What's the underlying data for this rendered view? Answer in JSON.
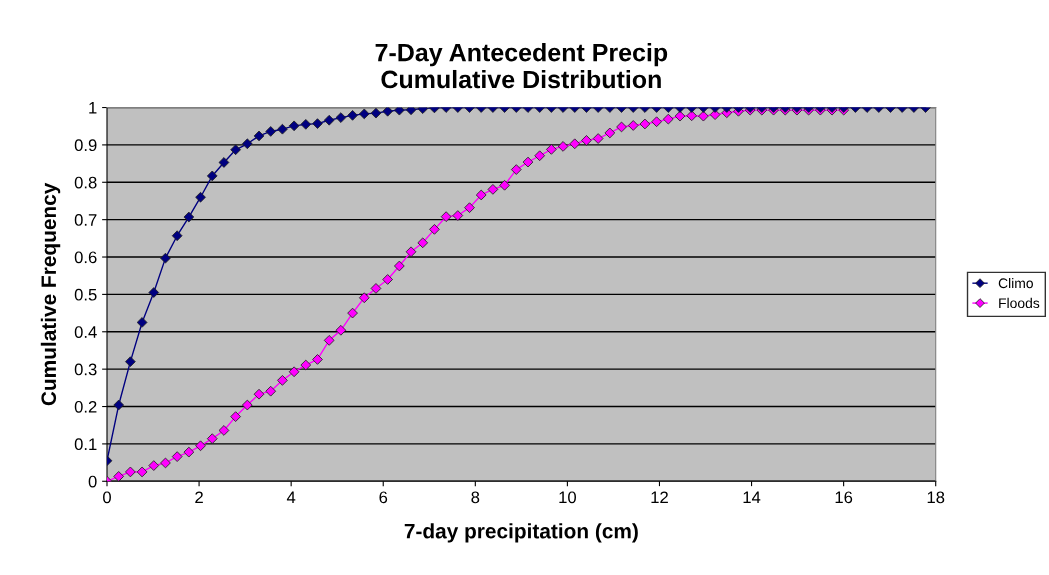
{
  "chart_data": {
    "type": "line",
    "title": "7-Day Antecedent Precip\nCumulative Distribution",
    "xlabel": "7-day precipitation (cm)",
    "ylabel": "Cumulative Frequency",
    "x": [
      0,
      0.254,
      0.508,
      0.762,
      1.016,
      1.27,
      1.524,
      1.778,
      2.032,
      2.286,
      2.54,
      2.794,
      3.048,
      3.302,
      3.556,
      3.81,
      4.064,
      4.318,
      4.572,
      4.826,
      5.08,
      5.334,
      5.588,
      5.842,
      6.096,
      6.35,
      6.604,
      6.858,
      7.112,
      7.366,
      7.62,
      7.874,
      8.128,
      8.382,
      8.636,
      8.89,
      9.144,
      9.398,
      9.652,
      9.906,
      10.16,
      10.414,
      10.668,
      10.922,
      11.176,
      11.43,
      11.684,
      11.938,
      12.192,
      12.446,
      12.7,
      12.954,
      13.208,
      13.462,
      13.716,
      13.97,
      14.224,
      14.478,
      14.732,
      14.986,
      15.24,
      15.494,
      15.748,
      16.002,
      16.256,
      16.51,
      16.764,
      17.018,
      17.272,
      17.526,
      17.78
    ],
    "series": [
      {
        "name": "Climo",
        "color": "#000080",
        "values": [
          0.055,
          0.204,
          0.32,
          0.425,
          0.505,
          0.597,
          0.657,
          0.707,
          0.76,
          0.817,
          0.853,
          0.887,
          0.903,
          0.924,
          0.936,
          0.942,
          0.951,
          0.955,
          0.957,
          0.966,
          0.973,
          0.979,
          0.983,
          0.985,
          0.99,
          0.993,
          0.994,
          0.997,
          0.999,
          1,
          1,
          1,
          1,
          1,
          1,
          1,
          1,
          1,
          1,
          1,
          1,
          1,
          1,
          1,
          1,
          1,
          1,
          1,
          1,
          1,
          1,
          1,
          1,
          1,
          1,
          1,
          1,
          1,
          1,
          1,
          1,
          1,
          1,
          1,
          1,
          1,
          1,
          1,
          1,
          1,
          1
        ]
      },
      {
        "name": "Floods",
        "color": "#ff00ff",
        "values": [
          0,
          0.013,
          0.025,
          0.025,
          0.042,
          0.049,
          0.066,
          0.078,
          0.095,
          0.114,
          0.136,
          0.173,
          0.204,
          0.233,
          0.241,
          0.27,
          0.293,
          0.311,
          0.326,
          0.377,
          0.404,
          0.45,
          0.491,
          0.516,
          0.54,
          0.576,
          0.614,
          0.638,
          0.674,
          0.708,
          0.711,
          0.732,
          0.766,
          0.781,
          0.792,
          0.834,
          0.854,
          0.871,
          0.888,
          0.896,
          0.903,
          0.912,
          0.917,
          0.932,
          0.948,
          0.952,
          0.956,
          0.962,
          0.969,
          0.977,
          0.978,
          0.977,
          0.981,
          0.986,
          0.99,
          0.993,
          0.993,
          0.993,
          0.993,
          0.993,
          0.993,
          0.993,
          0.993,
          0.993,
          null,
          null,
          null,
          null,
          null,
          null,
          null
        ]
      }
    ],
    "xlim": [
      0,
      18
    ],
    "xticks": [
      0,
      2,
      4,
      6,
      8,
      10,
      12,
      14,
      16,
      18
    ],
    "ylim": [
      0,
      1
    ],
    "yticks": [
      0,
      0.1,
      0.2,
      0.3,
      0.4,
      0.5,
      0.6,
      0.7,
      0.8,
      0.9,
      1
    ],
    "grid": "y",
    "legend": "right",
    "marker": "diamond",
    "line_style": "solid"
  }
}
